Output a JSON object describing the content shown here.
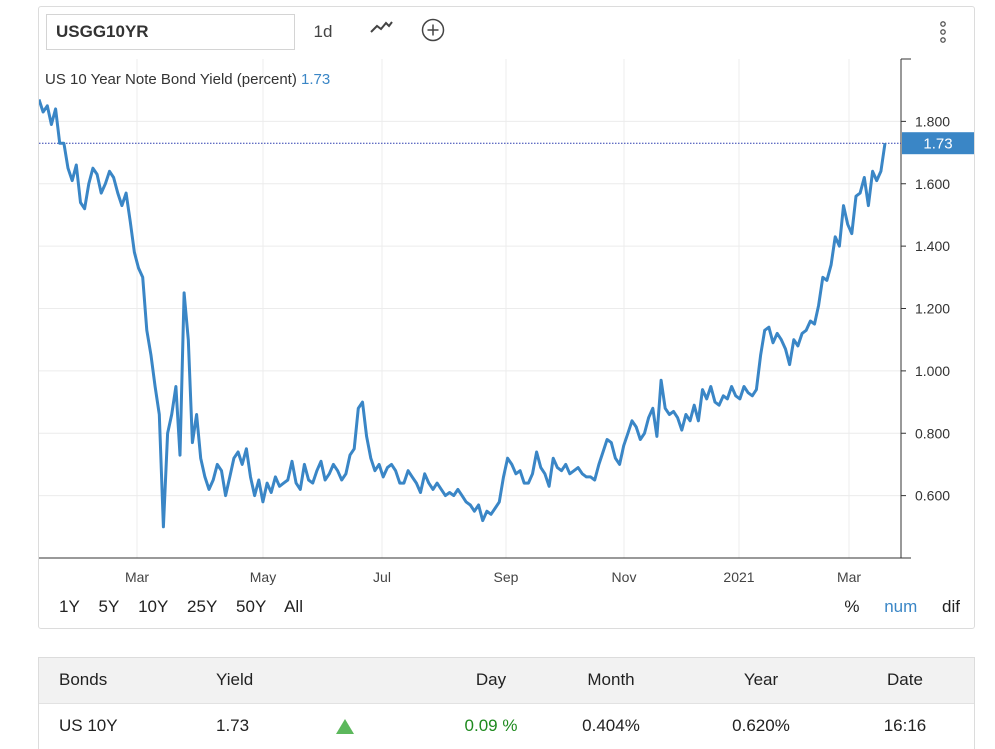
{
  "toolbar": {
    "symbol_value": "USGG10YR",
    "interval_label": "1d",
    "chart_type_icon": "line-chart-icon",
    "add_icon": "plus-circle-icon",
    "more_icon": "more-vertical-icon"
  },
  "legend": {
    "title": "US 10 Year Note Bond Yield (percent)",
    "value": "1.73"
  },
  "colors": {
    "line": "#3a86c6",
    "last_value_tag": "#3a86c6",
    "positive": "#1f8a1f",
    "up_arrow": "#5cb85c"
  },
  "chart_data": {
    "type": "line",
    "title": "US 10 Year Note Bond Yield (percent)",
    "xlabel": "",
    "ylabel": "",
    "x_tick_labels": [
      "Mar",
      "May",
      "Jul",
      "Sep",
      "Nov",
      "2021",
      "Mar"
    ],
    "y_tick_labels": [
      "1.800",
      "1.600",
      "1.400",
      "1.200",
      "1.000",
      "0.800",
      "0.600"
    ],
    "y_ticks": [
      1.8,
      1.6,
      1.4,
      1.2,
      1.0,
      0.8,
      0.6
    ],
    "ylim": [
      0.4,
      2.0
    ],
    "last_value": 1.73,
    "last_value_label": "1.73",
    "grid": true,
    "series": [
      {
        "values": [
          1.87,
          1.83,
          1.85,
          1.79,
          1.84,
          1.73,
          1.73,
          1.65,
          1.61,
          1.66,
          1.54,
          1.52,
          1.6,
          1.65,
          1.63,
          1.57,
          1.6,
          1.64,
          1.62,
          1.57,
          1.53,
          1.57,
          1.48,
          1.38,
          1.33,
          1.3,
          1.13,
          1.05,
          0.95,
          0.86,
          0.5,
          0.8,
          0.86,
          0.95,
          0.73,
          1.25,
          1.1,
          0.77,
          0.86,
          0.72,
          0.66,
          0.62,
          0.65,
          0.7,
          0.68,
          0.6,
          0.66,
          0.72,
          0.74,
          0.7,
          0.75,
          0.66,
          0.6,
          0.65,
          0.58,
          0.64,
          0.61,
          0.66,
          0.63,
          0.64,
          0.65,
          0.71,
          0.64,
          0.62,
          0.7,
          0.65,
          0.64,
          0.68,
          0.71,
          0.65,
          0.67,
          0.7,
          0.68,
          0.65,
          0.67,
          0.73,
          0.75,
          0.88,
          0.9,
          0.79,
          0.72,
          0.68,
          0.7,
          0.66,
          0.69,
          0.7,
          0.68,
          0.64,
          0.64,
          0.68,
          0.66,
          0.64,
          0.61,
          0.67,
          0.64,
          0.62,
          0.64,
          0.62,
          0.6,
          0.61,
          0.6,
          0.62,
          0.6,
          0.58,
          0.57,
          0.55,
          0.57,
          0.52,
          0.55,
          0.54,
          0.56,
          0.58,
          0.66,
          0.72,
          0.7,
          0.67,
          0.68,
          0.64,
          0.64,
          0.67,
          0.74,
          0.69,
          0.67,
          0.63,
          0.72,
          0.69,
          0.68,
          0.7,
          0.67,
          0.68,
          0.69,
          0.67,
          0.66,
          0.66,
          0.65,
          0.7,
          0.74,
          0.78,
          0.77,
          0.72,
          0.7,
          0.76,
          0.8,
          0.84,
          0.82,
          0.78,
          0.8,
          0.85,
          0.88,
          0.79,
          0.97,
          0.88,
          0.86,
          0.87,
          0.85,
          0.81,
          0.86,
          0.84,
          0.89,
          0.84,
          0.94,
          0.91,
          0.95,
          0.9,
          0.89,
          0.92,
          0.91,
          0.95,
          0.92,
          0.91,
          0.95,
          0.93,
          0.92,
          0.94,
          1.05,
          1.13,
          1.14,
          1.09,
          1.12,
          1.1,
          1.07,
          1.02,
          1.1,
          1.08,
          1.12,
          1.13,
          1.16,
          1.15,
          1.21,
          1.3,
          1.29,
          1.34,
          1.43,
          1.4,
          1.53,
          1.47,
          1.44,
          1.56,
          1.57,
          1.62,
          1.53,
          1.64,
          1.61,
          1.64,
          1.73
        ]
      }
    ]
  },
  "range_buttons": [
    "1Y",
    "5Y",
    "10Y",
    "25Y",
    "50Y",
    "All"
  ],
  "mode_buttons": [
    "%",
    "num",
    "dif"
  ],
  "mode_active": "num",
  "table": {
    "headers": {
      "bonds": "Bonds",
      "yield": "Yield",
      "day": "Day",
      "month": "Month",
      "year": "Year",
      "date": "Date"
    },
    "rows": [
      {
        "name": "US 10Y",
        "yield": "1.73",
        "direction_icon": "up-triangle-icon",
        "day": "0.09 %",
        "month": "0.404%",
        "year": "0.620%",
        "date": "16:16"
      }
    ]
  }
}
